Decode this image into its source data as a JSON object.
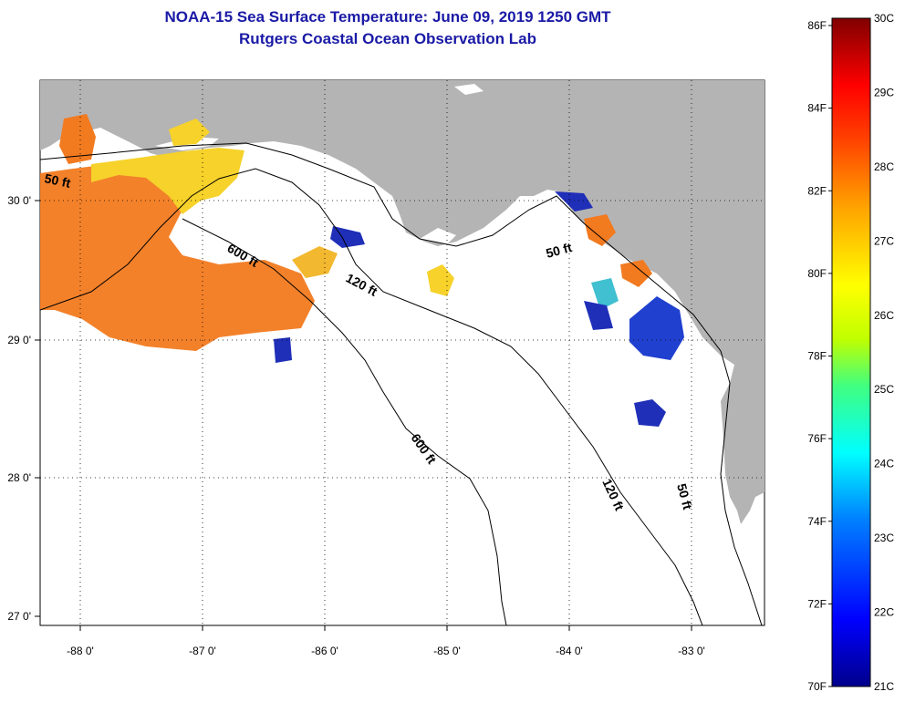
{
  "title": {
    "line1": "NOAA-15 Sea Surface Temperature:  June 09, 2019 1250 GMT",
    "line2": "Rutgers Coastal Ocean Observation Lab"
  },
  "map": {
    "lon_labels": [
      "-88 0'",
      "-87 0'",
      "-86 0'",
      "-85 0'",
      "-84 0'",
      "-83 0'"
    ],
    "lat_labels": [
      "30 0'",
      "29 0'",
      "28 0'",
      "27 0'"
    ],
    "contour_labels": {
      "c50_west": "50 ft",
      "c600_west": "600 ft",
      "c120_mid": "120 ft",
      "c50_bigbend": "50 ft",
      "c600_south": "600 ft",
      "c120_south": "120 ft",
      "c50_south": "50 ft"
    }
  },
  "colorbar": {
    "fahrenheit_labels": [
      "86F",
      "84F",
      "82F",
      "80F",
      "78F",
      "76F",
      "74F",
      "72F",
      "70F"
    ],
    "celsius_labels": [
      "30C",
      "29C",
      "28C",
      "27C",
      "26C",
      "25C",
      "24C",
      "23C",
      "22C",
      "21C"
    ],
    "colors": [
      "#00008b",
      "#0000ff",
      "#0080ff",
      "#00ffff",
      "#40ff80",
      "#c0ff00",
      "#ffff00",
      "#ffa000",
      "#ff4000",
      "#ff0000",
      "#800000"
    ]
  },
  "colors": {
    "land": "#b4b4b4",
    "sst_warm": "#f27a1f",
    "sst_yellow": "#f6d22a",
    "sst_cold": "#1f2fb8"
  }
}
